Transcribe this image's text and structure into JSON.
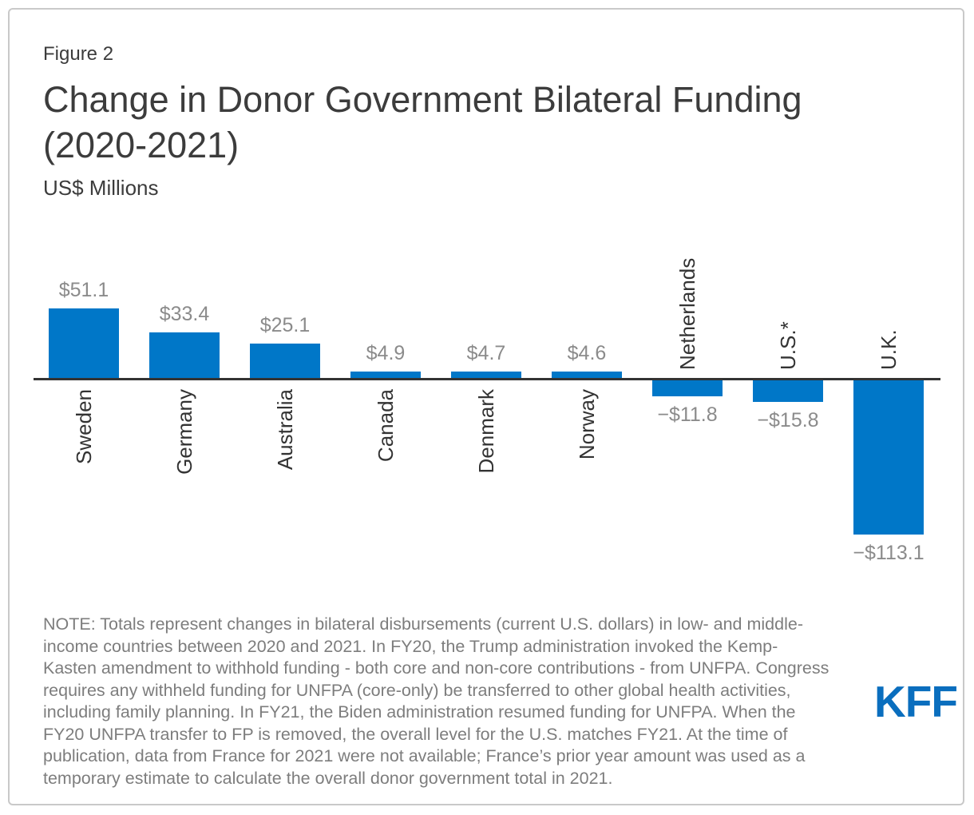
{
  "figure": {
    "label": "Figure 2"
  },
  "header": {
    "title": "Change in Donor Government Bilateral Funding (2020-2021)",
    "subtitle": "US$ Millions"
  },
  "chart_data": {
    "type": "bar",
    "title": "Change in Donor Government Bilateral Funding (2020-2021)",
    "unit": "US$ Millions",
    "categories": [
      "Sweden",
      "Germany",
      "Australia",
      "Canada",
      "Denmark",
      "Norway",
      "Netherlands",
      "U.S.*",
      "U.K."
    ],
    "values": [
      51.1,
      33.4,
      25.1,
      4.9,
      4.7,
      4.6,
      -11.8,
      -15.8,
      -113.1
    ],
    "value_labels": [
      "$51.1",
      "$33.4",
      "$25.1",
      "$4.9",
      "$4.7",
      "$4.6",
      "−$11.8",
      "−$15.8",
      "−$113.1"
    ],
    "xlabel": "",
    "ylabel": "US$ Millions",
    "ylim": [
      -120,
      60
    ],
    "grid": false,
    "legend": false,
    "category_label_rotation": -90,
    "bar_color": "#0077c8",
    "axis_color": "#333333",
    "value_label_color": "#8b8b8b",
    "category_label_color": "#333333"
  },
  "note": {
    "text": "NOTE: Totals represent changes in bilateral disbursements (current U.S. dollars) in low- and middle-\nincome countries between 2020 and 2021. In FY20, the Trump administration invoked the Kemp-\nKasten amendment to withhold funding - both core and non-core contributions - from UNFPA. Congress\nrequires any withheld funding for UNFPA (core-only) be transferred to other global health activities,\nincluding family planning. In FY21, the Biden administration resumed funding for UNFPA. When the\nFY20 UNFPA transfer to FP is removed, the overall level for the U.S. matches FY21. At the time of\npublication, data from France for 2021 were not available; France’s prior year amount was used as a\ntemporary estimate to calculate the overall donor government total in 2021."
  },
  "logo": {
    "text": "KFF",
    "color": "#0a6ebe"
  }
}
